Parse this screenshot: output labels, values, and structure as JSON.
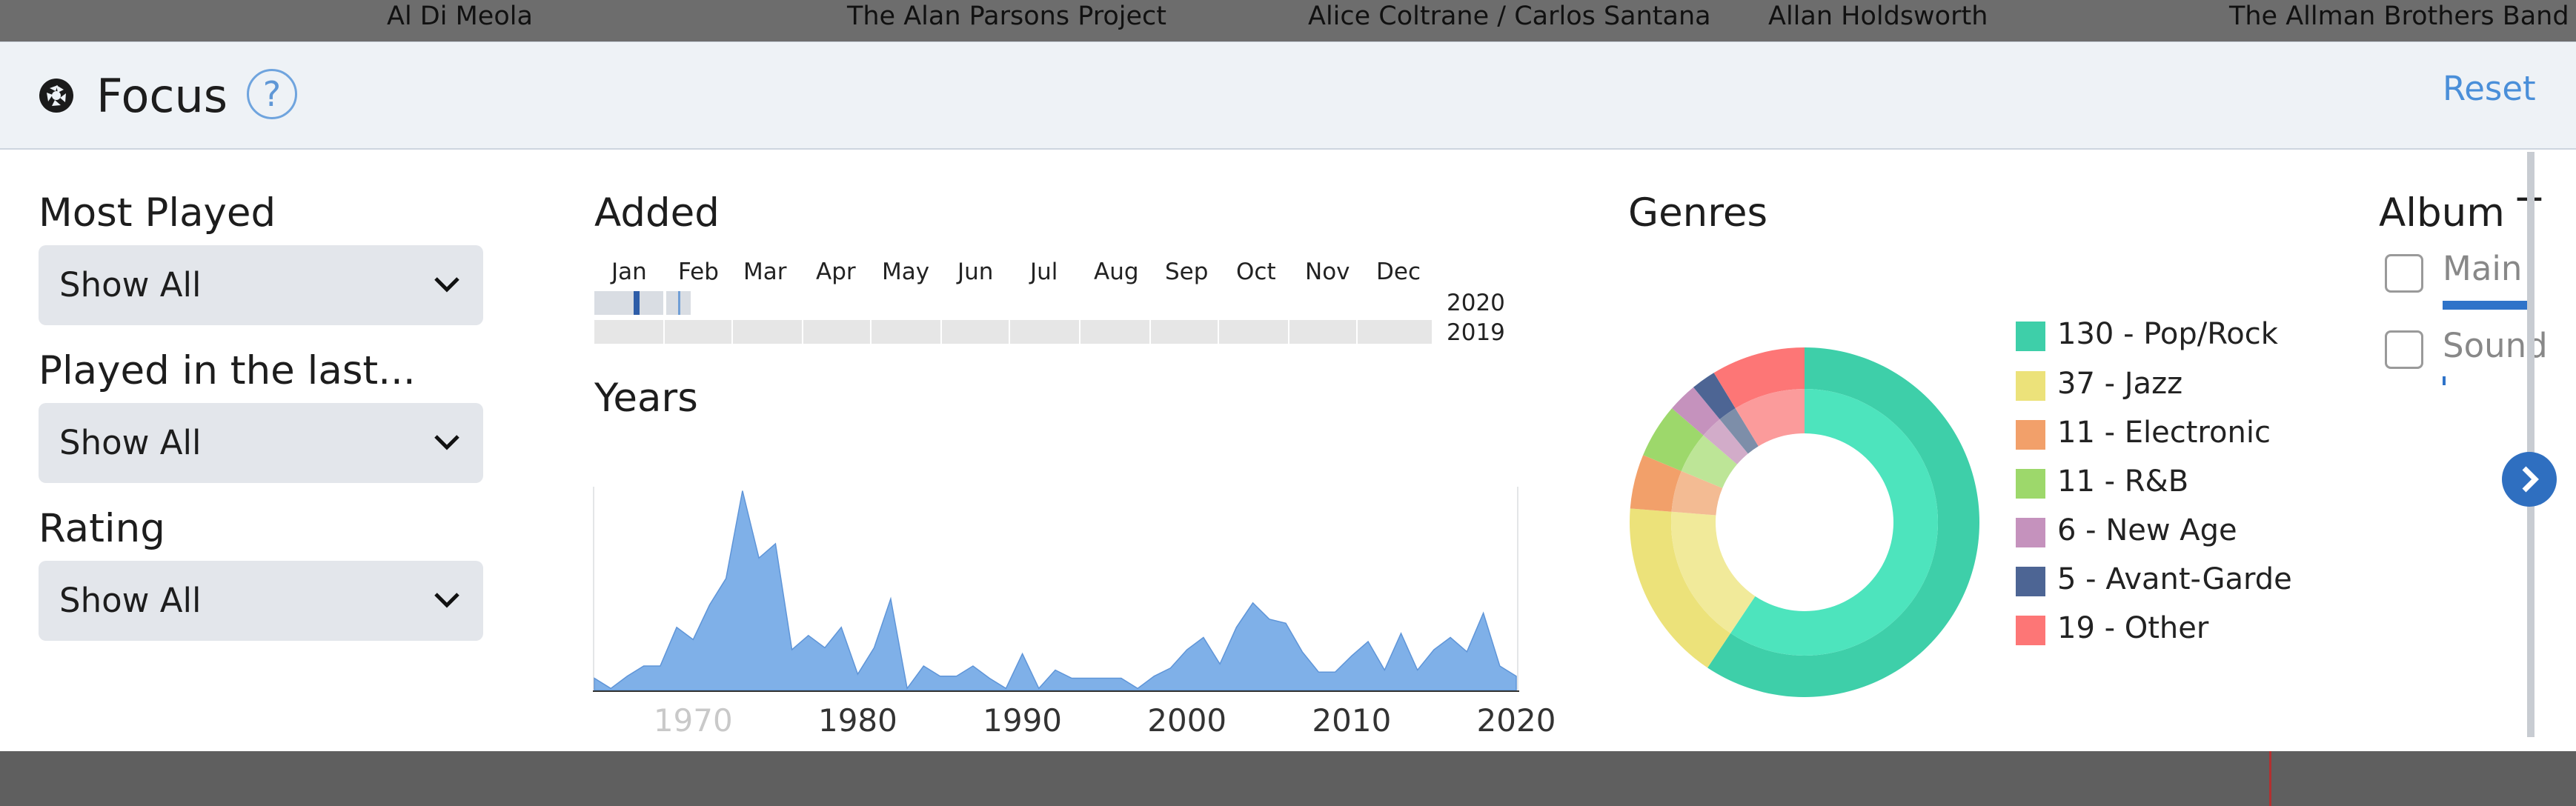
{
  "artists": [
    "Al Di Meola",
    "The Alan Parsons Project",
    "Alice Coltrane / Carlos Santana",
    "Allan Holdsworth",
    "The Allman Brothers Band"
  ],
  "header": {
    "title": "Focus",
    "help": "?",
    "reset": "Reset"
  },
  "filters": {
    "most_played": {
      "label": "Most Played",
      "value": "Show All"
    },
    "played_in_last": {
      "label": "Played in the last...",
      "value": "Show All"
    },
    "rating": {
      "label": "Rating",
      "value": "Show All"
    }
  },
  "added": {
    "title": "Added",
    "months": [
      "Jan",
      "Feb",
      "Mar",
      "Apr",
      "May",
      "Jun",
      "Jul",
      "Aug",
      "Sep",
      "Oct",
      "Nov",
      "Dec"
    ],
    "years": [
      "2020",
      "2019"
    ]
  },
  "years_chart": {
    "title": "Years",
    "ticks": [
      "1970",
      "1980",
      "1990",
      "2000",
      "2010",
      "2020"
    ],
    "color": "#7fb0e8",
    "x_range": [
      1964,
      2020
    ],
    "y_range": [
      0,
      10
    ],
    "x": [
      1964,
      1965,
      1966,
      1967,
      1968,
      1969,
      1970,
      1971,
      1972,
      1973,
      1974,
      1975,
      1976,
      1977,
      1978,
      1979,
      1980,
      1981,
      1982,
      1983,
      1984,
      1985,
      1986,
      1987,
      1988,
      1989,
      1990,
      1991,
      1992,
      1993,
      1994,
      1995,
      1996,
      1997,
      1998,
      1999,
      2000,
      2001,
      2002,
      2003,
      2004,
      2005,
      2006,
      2007,
      2008,
      2009,
      2010,
      2011,
      2012,
      2013,
      2014,
      2015,
      2016,
      2017,
      2018,
      2019,
      2020
    ],
    "y": [
      0.6,
      0.1,
      0.7,
      1.2,
      1.2,
      3.1,
      2.5,
      4.2,
      5.5,
      9.8,
      6.5,
      7.2,
      2.0,
      2.7,
      2.1,
      3.1,
      0.8,
      2.1,
      4.5,
      0.1,
      1.2,
      0.7,
      0.7,
      1.2,
      0.6,
      0.1,
      1.8,
      0.1,
      1.0,
      0.6,
      0.6,
      0.6,
      0.6,
      0.1,
      0.7,
      1.1,
      2.0,
      2.6,
      1.3,
      3.1,
      4.3,
      3.5,
      3.3,
      1.9,
      0.9,
      0.9,
      1.7,
      2.4,
      1.0,
      2.8,
      1.0,
      2.0,
      2.6,
      1.9,
      3.8,
      1.2,
      0.7
    ]
  },
  "genres": {
    "title": "Genres",
    "items": [
      {
        "label": "130 - Pop/Rock",
        "value": 130,
        "color": "#3ecfa9",
        "inner": "#4de4bd"
      },
      {
        "label": "37 - Jazz",
        "value": 37,
        "color": "#ece27a",
        "inner": "#f1ea9a"
      },
      {
        "label": "11 - Electronic",
        "value": 11,
        "color": "#f2a06a",
        "inner": "#f3bb93"
      },
      {
        "label": "11 - R&B",
        "value": 11,
        "color": "#9dd86b",
        "inner": "#bde597"
      },
      {
        "label": "6 - New Age",
        "value": 6,
        "color": "#c592bd",
        "inner": "#d2acc9"
      },
      {
        "label": "5 - Avant-Garde",
        "value": 5,
        "color": "#4d6594",
        "inner": "#7d8ea9"
      },
      {
        "label": "19 - Other",
        "value": 19,
        "color": "#fd7676",
        "inner": "#fb9b9b"
      }
    ]
  },
  "album_type": {
    "title": "Album T",
    "options": [
      "Main",
      "Sound"
    ]
  }
}
